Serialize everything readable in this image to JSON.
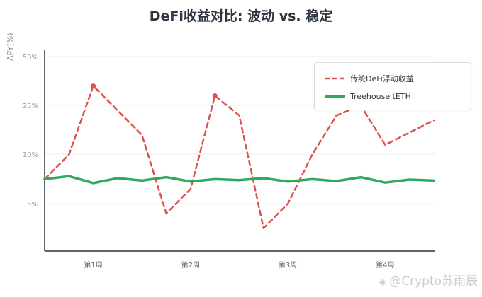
{
  "chart_data": {
    "type": "line",
    "title": "DeFi收益对比: 波动 vs. 稳定",
    "ylabel": "APY(%)",
    "xlabel": "",
    "y_ticks": [
      "5%",
      "10%",
      "25%",
      "50%"
    ],
    "y_axis_scale": "categorical-ordinal",
    "ylim": [
      0,
      4
    ],
    "x": [
      0,
      1,
      2,
      3,
      4,
      5,
      6,
      7,
      8,
      9,
      10,
      11,
      12,
      13,
      14,
      15,
      16
    ],
    "x_tick_labels": [
      {
        "label": "第1周",
        "x": 2
      },
      {
        "label": "第2周",
        "x": 6
      },
      {
        "label": "第3周",
        "x": 10
      },
      {
        "label": "第4周",
        "x": 14
      }
    ],
    "xlim": [
      0,
      16
    ],
    "series": [
      {
        "name": "传统DeFi浮动收益",
        "style": "dashed",
        "color": "#d9534f",
        "values": [
          1.5,
          2.0,
          3.4,
          2.9,
          2.4,
          0.8,
          1.3,
          3.2,
          2.8,
          0.5,
          1.0,
          2.0,
          2.8,
          3.0,
          2.2,
          2.45,
          2.7
        ]
      },
      {
        "name": "Treehouse tETH",
        "style": "solid",
        "color": "#2eaa5c",
        "values": [
          1.5,
          1.56,
          1.42,
          1.52,
          1.47,
          1.54,
          1.45,
          1.5,
          1.48,
          1.52,
          1.45,
          1.5,
          1.46,
          1.54,
          1.43,
          1.49,
          1.47
        ]
      }
    ],
    "grid": true,
    "legend_position": "top-right"
  },
  "watermark": {
    "text": "@Crypto苏雨辰",
    "icon": "binance-square-icon"
  }
}
